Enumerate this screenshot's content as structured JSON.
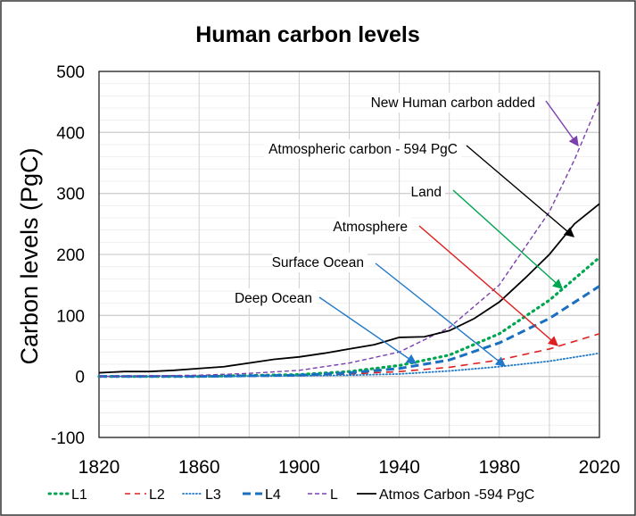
{
  "chart_data": {
    "type": "line",
    "title": "Human carbon levels",
    "xlabel": "",
    "ylabel": "Carbon levels (PgC)",
    "xlim": [
      1820,
      2020
    ],
    "ylim": [
      -100,
      500
    ],
    "x_ticks": [
      1820,
      1860,
      1900,
      1940,
      1980,
      2020
    ],
    "y_ticks": [
      -100,
      0,
      100,
      200,
      300,
      400,
      500
    ],
    "grid": true,
    "legend_position": "bottom",
    "series": [
      {
        "name": "L1",
        "color": "#00a550",
        "style": "dotted",
        "x": [
          1820,
          1860,
          1900,
          1920,
          1940,
          1960,
          1980,
          2000,
          2020
        ],
        "y": [
          0,
          0,
          3,
          8,
          18,
          35,
          70,
          125,
          195
        ]
      },
      {
        "name": "L2",
        "color": "#e02020",
        "style": "dashed",
        "x": [
          1820,
          1860,
          1900,
          1920,
          1940,
          1960,
          1980,
          2000,
          2020
        ],
        "y": [
          0,
          0,
          1,
          4,
          8,
          15,
          27,
          45,
          70
        ]
      },
      {
        "name": "L3",
        "color": "#1f78c8",
        "style": "dotted-fine",
        "x": [
          1820,
          1860,
          1900,
          1920,
          1940,
          1960,
          1980,
          2000,
          2020
        ],
        "y": [
          0,
          0,
          1,
          2,
          4,
          9,
          16,
          25,
          38
        ]
      },
      {
        "name": "L4",
        "color": "#1a6fc0",
        "style": "dashed-thick",
        "x": [
          1820,
          1860,
          1900,
          1920,
          1940,
          1960,
          1980,
          2000,
          2020
        ],
        "y": [
          0,
          0,
          2,
          6,
          13,
          27,
          55,
          95,
          148
        ]
      },
      {
        "name": "L",
        "color": "#7b3fb0",
        "style": "dashed-fine",
        "x": [
          1820,
          1840,
          1860,
          1880,
          1900,
          1920,
          1940,
          1960,
          1980,
          2000,
          2010,
          2020
        ],
        "y": [
          0,
          1,
          2,
          5,
          10,
          22,
          40,
          80,
          150,
          270,
          355,
          452
        ]
      },
      {
        "name": "Atmos Carbon -594 PgC",
        "color": "#000000",
        "style": "solid",
        "x": [
          1820,
          1830,
          1840,
          1850,
          1860,
          1870,
          1880,
          1890,
          1900,
          1910,
          1920,
          1930,
          1940,
          1950,
          1960,
          1970,
          1980,
          1990,
          2000,
          2010,
          2020
        ],
        "y": [
          6,
          8,
          8,
          10,
          13,
          16,
          22,
          28,
          32,
          38,
          45,
          52,
          64,
          65,
          75,
          95,
          122,
          160,
          200,
          250,
          283
        ]
      }
    ],
    "annotations": [
      {
        "text": "New Human carbon added",
        "color": "#7b3fb0"
      },
      {
        "text": "Atmospheric carbon - 594 PgC",
        "color": "#000000"
      },
      {
        "text": "Land",
        "color": "#00a550"
      },
      {
        "text": "Atmosphere",
        "color": "#e02020"
      },
      {
        "text": "Surface Ocean",
        "color": "#1f78c8"
      },
      {
        "text": "Deep Ocean",
        "color": "#1f78c8"
      }
    ]
  }
}
